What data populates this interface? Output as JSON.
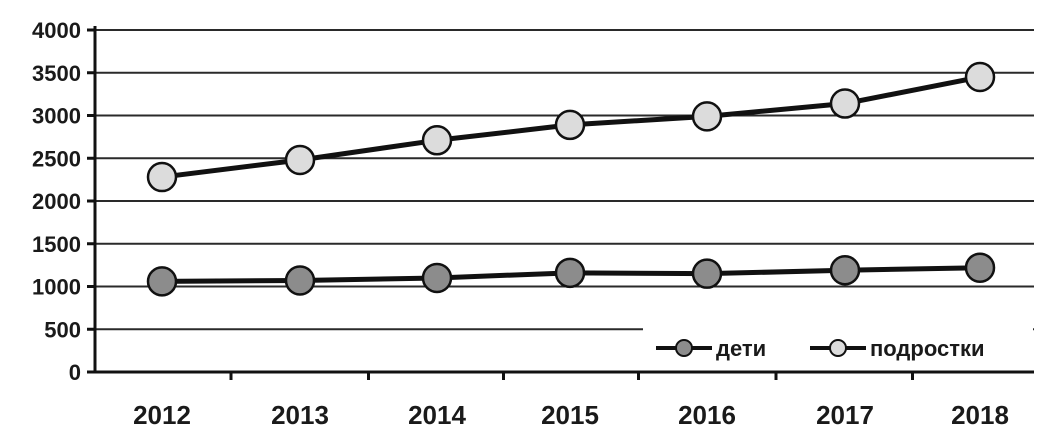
{
  "chart_data": {
    "type": "line",
    "title": "",
    "xlabel": "",
    "ylabel": "",
    "categories": [
      "2012",
      "2013",
      "2014",
      "2015",
      "2016",
      "2017",
      "2018"
    ],
    "ylim": [
      0,
      4000
    ],
    "yticks": [
      "0",
      "500",
      "1000",
      "1500",
      "2000",
      "2500",
      "3000",
      "3500",
      "4000"
    ],
    "grid": true,
    "legend_position": "bottom-right",
    "series": [
      {
        "name": "дети",
        "values": [
          1060,
          1070,
          1100,
          1160,
          1150,
          1190,
          1220
        ],
        "marker_color": "#8c8c8c"
      },
      {
        "name": "подростки",
        "values": [
          2280,
          2480,
          2710,
          2890,
          2990,
          3140,
          3450
        ],
        "marker_color": "#dcdcdc"
      }
    ]
  }
}
